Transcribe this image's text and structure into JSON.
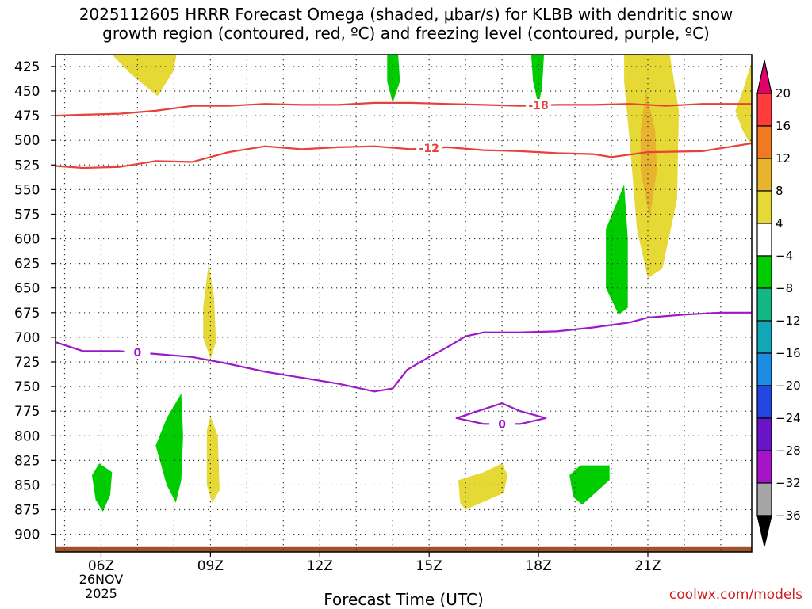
{
  "title": {
    "line1": "2025112605 HRRR Forecast Omega (shaded, μbar/s) for KLBB with dendritic snow",
    "line2": "growth region (contoured, red, ºC) and freezing level (contoured, purple, ºC)"
  },
  "xlabel": "Forecast Time (UTC)",
  "credit": "coolwx.com/models",
  "date": {
    "day": "26NOV",
    "year": "2025"
  },
  "chart_data": {
    "type": "heatmap",
    "x_unit": "hour UTC",
    "xlim": [
      4.75,
      23.85
    ],
    "y_unit": "hPa",
    "ylim": [
      413,
      918
    ],
    "x_ticks": [
      {
        "value": 6,
        "label": "06Z"
      },
      {
        "value": 9,
        "label": "09Z"
      },
      {
        "value": 12,
        "label": "12Z"
      },
      {
        "value": 15,
        "label": "15Z"
      },
      {
        "value": 18,
        "label": "18Z"
      },
      {
        "value": 21,
        "label": "21Z"
      }
    ],
    "y_ticks": [
      425,
      450,
      475,
      500,
      525,
      550,
      575,
      600,
      625,
      650,
      675,
      700,
      725,
      750,
      775,
      800,
      825,
      850,
      875,
      900
    ],
    "colorbar": {
      "ticks": [
        20,
        16,
        12,
        8,
        4,
        -4,
        -8,
        -12,
        -16,
        -20,
        -24,
        -28,
        -32,
        -36
      ],
      "colors": [
        "#e0006e",
        "#ff3b3b",
        "#ef7a22",
        "#e8b42d",
        "#e6d835",
        "#ffffff",
        "#00cc00",
        "#14b784",
        "#13a7b6",
        "#1c8de2",
        "#2446e0",
        "#6a14c8",
        "#a614c8",
        "#a6a6a6",
        "#000000"
      ]
    },
    "omega_regions": [
      {
        "color": "#e6d835",
        "points": [
          [
            6.3,
            413
          ],
          [
            6.8,
            432
          ],
          [
            7.55,
            455
          ],
          [
            7.98,
            430
          ],
          [
            8.07,
            413
          ]
        ]
      },
      {
        "color": "#e6d835",
        "points": [
          [
            8.8,
            670
          ],
          [
            8.95,
            625
          ],
          [
            9.1,
            660
          ],
          [
            9.15,
            705
          ],
          [
            9.0,
            722
          ],
          [
            8.8,
            700
          ]
        ]
      },
      {
        "color": "#e6d835",
        "points": [
          [
            8.9,
            795
          ],
          [
            9.0,
            780
          ],
          [
            9.2,
            800
          ],
          [
            9.25,
            855
          ],
          [
            9.05,
            868
          ],
          [
            8.9,
            850
          ]
        ]
      },
      {
        "color": "#e6d835",
        "points": [
          [
            15.8,
            845
          ],
          [
            16.5,
            837
          ],
          [
            17.0,
            828
          ],
          [
            17.15,
            840
          ],
          [
            17.05,
            858
          ],
          [
            16.0,
            875
          ],
          [
            15.85,
            868
          ]
        ]
      },
      {
        "color": "#e6d835",
        "points": [
          [
            20.35,
            413
          ],
          [
            21.6,
            413
          ],
          [
            21.85,
            470
          ],
          [
            21.8,
            560
          ],
          [
            21.4,
            630
          ],
          [
            21.0,
            640
          ],
          [
            20.7,
            590
          ],
          [
            20.5,
            500
          ],
          [
            20.35,
            440
          ]
        ]
      },
      {
        "color": "#e8b42d",
        "points": [
          [
            20.95,
            450
          ],
          [
            21.2,
            490
          ],
          [
            21.25,
            530
          ],
          [
            21.05,
            580
          ],
          [
            20.8,
            530
          ],
          [
            20.8,
            490
          ]
        ]
      },
      {
        "color": "#e6d835",
        "points": [
          [
            23.85,
            420
          ],
          [
            23.85,
            506
          ],
          [
            23.6,
            490
          ],
          [
            23.4,
            470
          ],
          [
            23.6,
            450
          ]
        ]
      },
      {
        "color": "#00cc00",
        "points": [
          [
            13.85,
            413
          ],
          [
            14.15,
            413
          ],
          [
            14.2,
            440
          ],
          [
            14.0,
            462
          ],
          [
            13.85,
            440
          ]
        ]
      },
      {
        "color": "#00cc00",
        "points": [
          [
            17.8,
            413
          ],
          [
            18.15,
            413
          ],
          [
            18.1,
            445
          ],
          [
            18.0,
            465
          ],
          [
            17.85,
            440
          ]
        ]
      },
      {
        "color": "#00cc00",
        "points": [
          [
            19.85,
            590
          ],
          [
            20.35,
            545
          ],
          [
            20.45,
            600
          ],
          [
            20.45,
            670
          ],
          [
            20.2,
            677
          ],
          [
            19.85,
            650
          ]
        ]
      },
      {
        "color": "#00cc00",
        "points": [
          [
            18.85,
            840
          ],
          [
            19.15,
            830
          ],
          [
            19.95,
            830
          ],
          [
            19.95,
            845
          ],
          [
            19.2,
            870
          ],
          [
            18.95,
            862
          ]
        ]
      },
      {
        "color": "#00cc00",
        "points": [
          [
            7.5,
            810
          ],
          [
            7.8,
            782
          ],
          [
            8.2,
            757
          ],
          [
            8.25,
            800
          ],
          [
            8.2,
            845
          ],
          [
            8.05,
            868
          ],
          [
            7.8,
            850
          ]
        ]
      },
      {
        "color": "#00cc00",
        "points": [
          [
            5.75,
            840
          ],
          [
            5.95,
            828
          ],
          [
            6.3,
            837
          ],
          [
            6.25,
            860
          ],
          [
            6.05,
            877
          ],
          [
            5.85,
            865
          ]
        ]
      }
    ],
    "terrain": {
      "color": "#a0522d",
      "top_hpa": 913
    },
    "contours": [
      {
        "name": "-18",
        "color": "#e8403a",
        "label": "-18",
        "label_x": 18.0,
        "points": [
          [
            4.75,
            475
          ],
          [
            5.5,
            474
          ],
          [
            6.5,
            473
          ],
          [
            7.5,
            470
          ],
          [
            8.5,
            465
          ],
          [
            9.5,
            465
          ],
          [
            10.5,
            463
          ],
          [
            11.5,
            464
          ],
          [
            12.5,
            464
          ],
          [
            13.5,
            462
          ],
          [
            14.5,
            462
          ],
          [
            15.5,
            463
          ],
          [
            16.5,
            464
          ],
          [
            17.5,
            465
          ],
          [
            18.5,
            464
          ],
          [
            19.5,
            464
          ],
          [
            20.5,
            463
          ],
          [
            21.5,
            465
          ],
          [
            22.5,
            463
          ],
          [
            23.85,
            463
          ]
        ]
      },
      {
        "name": "-12",
        "color": "#e8403a",
        "label": "-12",
        "label_x": 15.0,
        "points": [
          [
            4.75,
            526
          ],
          [
            5.5,
            528
          ],
          [
            6.5,
            527
          ],
          [
            7.5,
            521
          ],
          [
            8.5,
            522
          ],
          [
            9.5,
            512
          ],
          [
            10.5,
            506
          ],
          [
            11.5,
            509
          ],
          [
            12.5,
            507
          ],
          [
            13.5,
            506
          ],
          [
            14.5,
            509
          ],
          [
            15.5,
            507
          ],
          [
            16.5,
            510
          ],
          [
            17.5,
            511
          ],
          [
            18.5,
            513
          ],
          [
            19.5,
            514
          ],
          [
            20.0,
            517
          ],
          [
            21.0,
            512
          ],
          [
            22.5,
            511
          ],
          [
            23.85,
            503
          ]
        ]
      },
      {
        "name": "0",
        "color": "#9c19c9",
        "label": "0",
        "label_x": 7.0,
        "points": [
          [
            4.75,
            705
          ],
          [
            5.5,
            714
          ],
          [
            6.5,
            714
          ],
          [
            7.5,
            717
          ],
          [
            8.5,
            720
          ],
          [
            9.5,
            727
          ],
          [
            10.5,
            735
          ],
          [
            11.5,
            741
          ],
          [
            12.5,
            747
          ],
          [
            13.5,
            755
          ],
          [
            14.0,
            752
          ],
          [
            14.4,
            733
          ],
          [
            15.0,
            720
          ],
          [
            15.5,
            710
          ],
          [
            16.0,
            699
          ],
          [
            16.5,
            695
          ],
          [
            17.5,
            695
          ],
          [
            18.5,
            694
          ],
          [
            19.5,
            690
          ],
          [
            20.5,
            685
          ],
          [
            21.0,
            680
          ],
          [
            22.0,
            677
          ],
          [
            23.0,
            675
          ],
          [
            23.85,
            675
          ]
        ]
      },
      {
        "name": "0-island",
        "color": "#9c19c9",
        "label": "0",
        "label_x": 17.0,
        "closed": true,
        "points": [
          [
            15.75,
            782
          ],
          [
            16.5,
            773
          ],
          [
            17.0,
            767
          ],
          [
            17.5,
            775
          ],
          [
            18.2,
            782
          ],
          [
            17.5,
            788
          ],
          [
            16.5,
            788
          ]
        ]
      }
    ]
  }
}
